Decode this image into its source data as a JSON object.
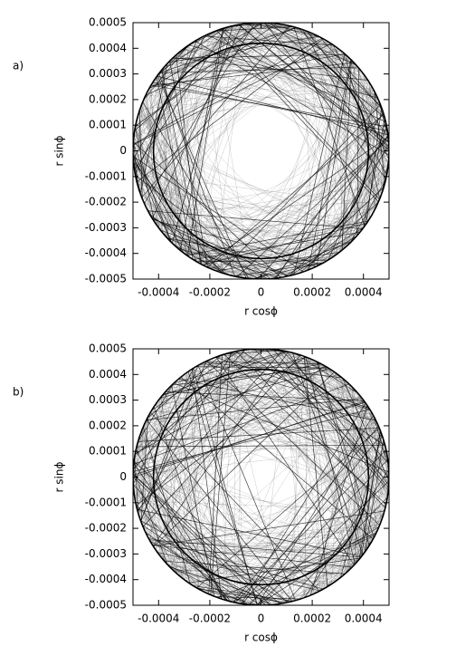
{
  "chart_data": [
    {
      "type": "orbit",
      "panel_label": "a)",
      "xlabel": "r cosϕ",
      "ylabel": "r sinϕ",
      "xlim": [
        -0.0005,
        0.0005
      ],
      "ylim": [
        -0.0005,
        0.0005
      ],
      "xticks": [
        -0.0004,
        -0.0002,
        0,
        0.0002,
        0.0004
      ],
      "yticks": [
        -0.0005,
        -0.0004,
        -0.0003,
        -0.0002,
        -0.0001,
        0,
        0.0001,
        0.0002,
        0.0003,
        0.0004,
        0.0005
      ],
      "radii": [
        0.0005,
        0.00042
      ],
      "color": "#000000"
    },
    {
      "type": "orbit",
      "panel_label": "b)",
      "xlabel": "r cosϕ",
      "ylabel": "r sinϕ",
      "xlim": [
        -0.0005,
        0.0005
      ],
      "ylim": [
        -0.0005,
        0.0005
      ],
      "xticks": [
        -0.0004,
        -0.0002,
        0,
        0.0002,
        0.0004
      ],
      "yticks": [
        -0.0005,
        -0.0004,
        -0.0003,
        -0.0002,
        -0.0001,
        0,
        0.0001,
        0.0002,
        0.0003,
        0.0004,
        0.0005
      ],
      "radii": [
        0.0005,
        0.00042
      ],
      "color": "#000000"
    }
  ]
}
